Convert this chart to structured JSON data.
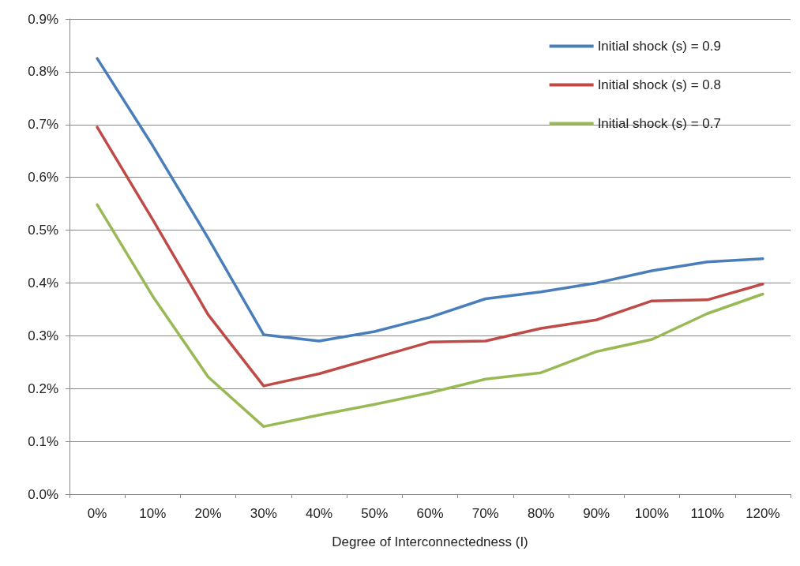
{
  "chart_data": {
    "type": "line",
    "xlabel": "Degree of Interconnectedness (I)",
    "categories": [
      "0%",
      "10%",
      "20%",
      "30%",
      "40%",
      "50%",
      "60%",
      "70%",
      "80%",
      "90%",
      "100%",
      "110%",
      "120%"
    ],
    "series": [
      {
        "name": "Initial shock (s) = 0.9",
        "color": "#4a7ebb",
        "values": [
          0.825,
          0.66,
          0.485,
          0.302,
          0.29,
          0.308,
          0.335,
          0.37,
          0.383,
          0.4,
          0.423,
          0.44,
          0.446
        ]
      },
      {
        "name": "Initial shock (s) = 0.8",
        "color": "#be4b48",
        "values": [
          0.695,
          0.52,
          0.34,
          0.205,
          0.228,
          0.258,
          0.288,
          0.29,
          0.314,
          0.33,
          0.366,
          0.368,
          0.398
        ]
      },
      {
        "name": "Initial shock (s) = 0.7",
        "color": "#98b954",
        "values": [
          0.548,
          0.375,
          0.222,
          0.128,
          0.15,
          0.17,
          0.192,
          0.218,
          0.23,
          0.27,
          0.293,
          0.342,
          0.379
        ]
      }
    ],
    "ylim": [
      0,
      0.9
    ],
    "yticks": [
      {
        "value": 0,
        "label": "0.0%"
      },
      {
        "value": 0.1,
        "label": "0.1%"
      },
      {
        "value": 0.2,
        "label": "0.2%"
      },
      {
        "value": 0.3,
        "label": "0.3%"
      },
      {
        "value": 0.4,
        "label": "0.4%"
      },
      {
        "value": 0.5,
        "label": "0.5%"
      },
      {
        "value": 0.6,
        "label": "0.6%"
      },
      {
        "value": 0.7,
        "label": "0.7%"
      },
      {
        "value": 0.8,
        "label": "0.8%"
      },
      {
        "value": 0.9,
        "label": "0.9%"
      }
    ],
    "grid": "y",
    "legend": "top right",
    "marker": "none",
    "line_style": "solid"
  }
}
